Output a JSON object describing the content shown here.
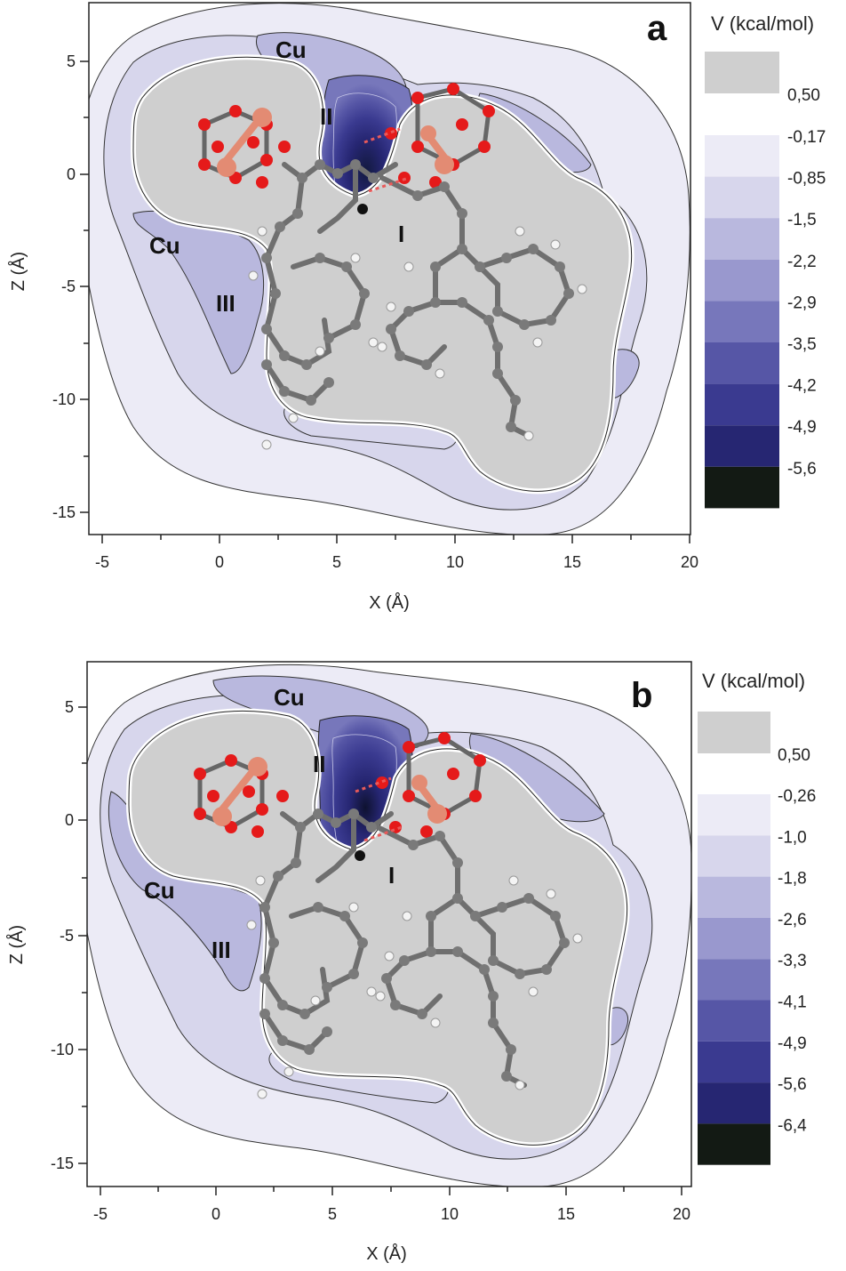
{
  "chart_data": [
    {
      "type": "contour",
      "panel_label": "a",
      "xlabel": "X (Å)",
      "ylabel": "Z (Å)",
      "xlim": [
        -5.5,
        20
      ],
      "ylim": [
        -16,
        7.5
      ],
      "x_ticks": [
        -5,
        0,
        5,
        10,
        15,
        20
      ],
      "y_ticks": [
        5,
        0,
        -5,
        -10,
        -15
      ],
      "legend": {
        "title": "V (kcal/mol)",
        "gray_level": "0,50",
        "levels": [
          "-0,17",
          "-0,85",
          "-1,5",
          "-2,2",
          "-2,9",
          "-3,5",
          "-4,2",
          "-4,9",
          "-5,6"
        ],
        "colors": [
          "#ecebf6",
          "#d7d6ec",
          "#b9b8de",
          "#9998ce",
          "#7777bb",
          "#5656a6",
          "#3a3a90",
          "#262672",
          "#131a14"
        ],
        "gray_color": "#cfcfcf"
      },
      "site_labels": [
        {
          "text": "Cu",
          "x": 3.3,
          "z": 5.5
        },
        {
          "text": "II",
          "x": 4.3,
          "z": 2.5
        },
        {
          "text": "I",
          "x": 7.8,
          "z": -2.6
        },
        {
          "text": "Cu",
          "x": -3.1,
          "z": -3.2
        },
        {
          "text": "III",
          "x": -0.1,
          "z": -5.9
        }
      ],
      "minimum": {
        "x": 6.2,
        "z": -1.5,
        "value": -5.6
      },
      "annotations": [
        "a"
      ]
    },
    {
      "type": "contour",
      "panel_label": "b",
      "xlabel": "X (Å)",
      "ylabel": "Z (Å)",
      "xlim": [
        -5.5,
        20
      ],
      "ylim": [
        -16,
        7.5
      ],
      "x_ticks": [
        -5,
        0,
        5,
        10,
        15,
        20
      ],
      "y_ticks": [
        5,
        0,
        -5,
        -10,
        -15
      ],
      "legend": {
        "title": "V  (kcal/mol)",
        "gray_level": "0,50",
        "levels": [
          "-0,26",
          "-1,0",
          "-1,8",
          "-2,6",
          "-3,3",
          "-4,1",
          "-4,9",
          "-5,6",
          "-6,4"
        ],
        "colors": [
          "#ecebf6",
          "#d7d6ec",
          "#b9b8de",
          "#9998ce",
          "#7777bb",
          "#5656a6",
          "#3a3a90",
          "#262672",
          "#131a14"
        ],
        "gray_color": "#cfcfcf"
      },
      "site_labels": [
        {
          "text": "Cu",
          "x": 3.3,
          "z": 5.5
        },
        {
          "text": "II",
          "x": 4.3,
          "z": 2.5
        },
        {
          "text": "I",
          "x": 7.6,
          "z": -2.5
        },
        {
          "text": "Cu",
          "x": -3.0,
          "z": -3.2
        },
        {
          "text": "III",
          "x": 0.1,
          "z": -5.9
        }
      ],
      "minimum": {
        "x": 6.0,
        "z": -1.4,
        "value": -6.4
      },
      "annotations": [
        "b"
      ]
    }
  ]
}
